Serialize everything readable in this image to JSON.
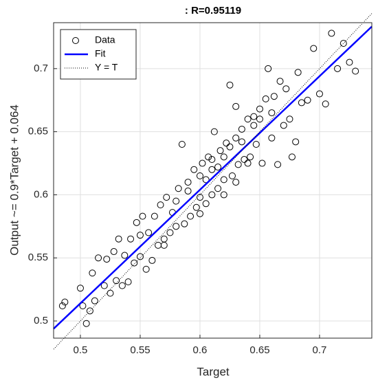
{
  "chart_data": {
    "type": "scatter",
    "title": ": R=0.95119",
    "xlabel": "Target",
    "ylabel": "Output ~= 0.9*Target + 0.064",
    "xlim": [
      0.4776,
      0.7437
    ],
    "ylim": [
      0.4864,
      0.7364
    ],
    "xticks": [
      0.5,
      0.55,
      0.6,
      0.65,
      0.7
    ],
    "yticks": [
      0.5,
      0.55,
      0.6,
      0.65,
      0.7
    ],
    "grid": true,
    "legend": "upper left",
    "series": [
      {
        "name": "Data",
        "color": "#000000",
        "style": "markers",
        "x": [
          0.485,
          0.487,
          0.5,
          0.502,
          0.505,
          0.508,
          0.51,
          0.512,
          0.515,
          0.52,
          0.522,
          0.525,
          0.528,
          0.53,
          0.532,
          0.535,
          0.537,
          0.54,
          0.542,
          0.545,
          0.547,
          0.55,
          0.552,
          0.555,
          0.557,
          0.56,
          0.562,
          0.565,
          0.567,
          0.57,
          0.572,
          0.575,
          0.577,
          0.58,
          0.582,
          0.585,
          0.587,
          0.59,
          0.592,
          0.595,
          0.597,
          0.6,
          0.602,
          0.605,
          0.607,
          0.61,
          0.612,
          0.615,
          0.617,
          0.62,
          0.622,
          0.625,
          0.627,
          0.63,
          0.632,
          0.635,
          0.637,
          0.64,
          0.642,
          0.645,
          0.647,
          0.65,
          0.652,
          0.655,
          0.657,
          0.66,
          0.662,
          0.665,
          0.667,
          0.67,
          0.672,
          0.675,
          0.677,
          0.68,
          0.682,
          0.685,
          0.69,
          0.695,
          0.7,
          0.705,
          0.71,
          0.715,
          0.72,
          0.725,
          0.73,
          0.58,
          0.6,
          0.61,
          0.62,
          0.63,
          0.64,
          0.65,
          0.6,
          0.61,
          0.62,
          0.59,
          0.57,
          0.55,
          0.63,
          0.66,
          0.625,
          0.605,
          0.615,
          0.635,
          0.645
        ],
        "values": [
          0.512,
          0.515,
          0.526,
          0.512,
          0.498,
          0.508,
          0.538,
          0.516,
          0.55,
          0.528,
          0.549,
          0.522,
          0.555,
          0.532,
          0.565,
          0.528,
          0.552,
          0.531,
          0.565,
          0.546,
          0.578,
          0.551,
          0.583,
          0.541,
          0.57,
          0.548,
          0.583,
          0.56,
          0.592,
          0.565,
          0.598,
          0.57,
          0.586,
          0.575,
          0.605,
          0.64,
          0.577,
          0.61,
          0.583,
          0.62,
          0.59,
          0.598,
          0.625,
          0.593,
          0.63,
          0.6,
          0.65,
          0.605,
          0.635,
          0.612,
          0.641,
          0.687,
          0.615,
          0.67,
          0.624,
          0.652,
          0.628,
          0.66,
          0.63,
          0.662,
          0.64,
          0.668,
          0.625,
          0.676,
          0.7,
          0.645,
          0.678,
          0.624,
          0.69,
          0.655,
          0.684,
          0.66,
          0.63,
          0.642,
          0.697,
          0.673,
          0.675,
          0.716,
          0.68,
          0.672,
          0.728,
          0.7,
          0.72,
          0.705,
          0.698,
          0.595,
          0.615,
          0.628,
          0.6,
          0.645,
          0.625,
          0.66,
          0.585,
          0.62,
          0.63,
          0.603,
          0.56,
          0.568,
          0.61,
          0.665,
          0.638,
          0.612,
          0.622,
          0.642,
          0.655
        ]
      },
      {
        "name": "Fit",
        "color": "#0000ff",
        "style": "solid",
        "x": [
          0.4776,
          0.7437
        ],
        "values": [
          0.49384,
          0.73333
        ]
      },
      {
        "name": "Y = T",
        "color": "#000000",
        "style": "dotted",
        "x": [
          0.4776,
          0.7437
        ],
        "values": [
          0.4776,
          0.7437
        ]
      }
    ]
  }
}
